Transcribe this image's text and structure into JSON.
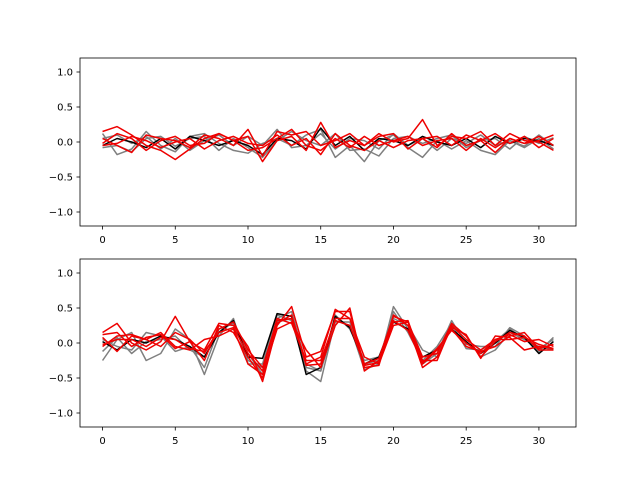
{
  "chart_data": [
    {
      "type": "line",
      "title": "",
      "xlabel": "",
      "ylabel": "",
      "xlim": [
        -1.55,
        32.55
      ],
      "ylim": [
        -1.2,
        1.2
      ],
      "x": [
        0,
        1,
        2,
        3,
        4,
        5,
        6,
        7,
        8,
        9,
        10,
        11,
        12,
        13,
        14,
        15,
        16,
        17,
        18,
        19,
        20,
        21,
        22,
        23,
        24,
        25,
        26,
        27,
        28,
        29,
        30,
        31
      ],
      "xticks": [
        0,
        5,
        10,
        15,
        20,
        25,
        30
      ],
      "xtick_labels": [
        "0",
        "5",
        "10",
        "15",
        "20",
        "25",
        "30"
      ],
      "yticks": [
        -1.0,
        -0.5,
        0.0,
        0.5,
        1.0
      ],
      "ytick_labels": [
        "−1.0",
        "−0.5",
        "0.0",
        "0.5",
        "1.0"
      ],
      "grid": false,
      "series_colors": {
        "black": "#000000",
        "gray": "#7f7f7f",
        "red": "#ee0000"
      },
      "series": [
        {
          "color": "gray",
          "values": [
            0.12,
            -0.18,
            -0.1,
            0.15,
            -0.05,
            -0.14,
            0.08,
            0.12,
            -0.02,
            -0.12,
            -0.16,
            -0.02,
            0.05,
            -0.05,
            0.1,
            0.18,
            -0.22,
            -0.05,
            -0.28,
            0.02,
            0.1,
            -0.08,
            -0.22,
            0.02,
            -0.1,
            0.02,
            -0.12,
            -0.18,
            0.02,
            -0.06,
            0.1,
            -0.05
          ]
        },
        {
          "color": "gray",
          "values": [
            -0.08,
            -0.05,
            -0.14,
            0.05,
            0.08,
            -0.06,
            0.05,
            0.08,
            -0.12,
            0.05,
            -0.08,
            -0.22,
            0.02,
            0.15,
            0.02,
            -0.05,
            0.12,
            -0.12,
            -0.1,
            -0.2,
            0.05,
            0.08,
            -0.02,
            0.05,
            0.1,
            -0.08,
            0.02,
            0.05,
            -0.1,
            0.08,
            -0.02,
            0.06
          ]
        },
        {
          "color": "gray",
          "values": [
            0.05,
            0.1,
            -0.02,
            0.08,
            -0.1,
            0.05,
            -0.12,
            0.02,
            0.1,
            -0.05,
            0.08,
            -0.05,
            0.18,
            -0.08,
            -0.05,
            0.12,
            -0.1,
            0.05,
            0.02,
            -0.1,
            0.12,
            -0.05,
            0.05,
            -0.12,
            0.05,
            -0.02,
            0.1,
            -0.05,
            0.02,
            -0.08,
            0.05,
            -0.1
          ]
        },
        {
          "color": "black",
          "values": [
            -0.05,
            0.05,
            0.0,
            -0.08,
            0.05,
            -0.1,
            0.08,
            0.02,
            -0.05,
            0.02,
            -0.05,
            -0.18,
            0.05,
            0.02,
            -0.1,
            0.2,
            -0.05,
            0.08,
            -0.12,
            0.05,
            0.02,
            -0.05,
            0.08,
            0.0,
            -0.05,
            0.05,
            -0.08,
            0.08,
            -0.02,
            0.05,
            0.02,
            -0.05
          ]
        },
        {
          "color": "red",
          "values": [
            0.15,
            0.22,
            0.1,
            -0.05,
            -0.12,
            -0.25,
            -0.1,
            0.05,
            0.12,
            0.02,
            0.08,
            -0.28,
            0.02,
            0.08,
            -0.12,
            0.28,
            -0.08,
            0.02,
            -0.05,
            0.12,
            0.0,
            0.05,
            0.32,
            -0.05,
            0.08,
            0.05,
            0.15,
            -0.05,
            0.12,
            0.02,
            0.0,
            -0.12
          ]
        },
        {
          "color": "red",
          "values": [
            0.05,
            -0.05,
            -0.15,
            0.1,
            0.05,
            0.02,
            -0.08,
            0.1,
            0.05,
            -0.05,
            0.18,
            -0.2,
            0.15,
            0.1,
            0.15,
            -0.05,
            0.02,
            0.12,
            -0.05,
            0.08,
            0.12,
            -0.1,
            0.05,
            0.08,
            -0.05,
            0.1,
            0.02,
            0.12,
            -0.02,
            0.08,
            -0.08,
            0.05
          ]
        },
        {
          "color": "red",
          "values": [
            -0.02,
            0.12,
            0.05,
            -0.12,
            0.02,
            0.08,
            -0.05,
            -0.02,
            0.12,
            0.02,
            -0.12,
            -0.08,
            0.05,
            0.18,
            -0.05,
            -0.12,
            0.05,
            -0.08,
            0.08,
            -0.05,
            0.02,
            0.08,
            -0.05,
            0.02,
            0.05,
            -0.12,
            0.05,
            -0.08,
            0.05,
            -0.02,
            0.08,
            -0.05
          ]
        },
        {
          "color": "red",
          "values": [
            -0.05,
            -0.02,
            0.08,
            0.02,
            -0.08,
            0.0,
            0.05,
            -0.1,
            0.02,
            0.08,
            -0.02,
            -0.05,
            0.1,
            -0.05,
            0.05,
            -0.18,
            0.12,
            -0.05,
            -0.12,
            0.02,
            -0.08,
            0.02,
            0.05,
            -0.08,
            0.12,
            -0.05,
            0.02,
            -0.15,
            0.05,
            -0.02,
            0.02,
            0.1
          ]
        }
      ]
    },
    {
      "type": "line",
      "title": "",
      "xlabel": "",
      "ylabel": "",
      "xlim": [
        -1.55,
        32.55
      ],
      "ylim": [
        -1.2,
        1.2
      ],
      "x": [
        0,
        1,
        2,
        3,
        4,
        5,
        6,
        7,
        8,
        9,
        10,
        11,
        12,
        13,
        14,
        15,
        16,
        17,
        18,
        19,
        20,
        21,
        22,
        23,
        24,
        25,
        26,
        27,
        28,
        29,
        30,
        31
      ],
      "xticks": [
        0,
        5,
        10,
        15,
        20,
        25,
        30
      ],
      "xtick_labels": [
        "0",
        "5",
        "10",
        "15",
        "20",
        "25",
        "30"
      ],
      "yticks": [
        -1.0,
        -0.5,
        0.0,
        0.5,
        1.0
      ],
      "ytick_labels": [
        "−1.0",
        "−0.5",
        "0.0",
        "0.5",
        "1.0"
      ],
      "grid": false,
      "series_colors": {
        "black": "#000000",
        "gray": "#7f7f7f",
        "red": "#ee0000"
      },
      "series": [
        {
          "color": "gray",
          "values": [
            -0.25,
            0.05,
            0.15,
            -0.25,
            -0.15,
            0.2,
            0.05,
            -0.45,
            0.1,
            0.35,
            -0.3,
            -0.3,
            0.4,
            0.32,
            -0.4,
            -0.55,
            0.32,
            0.25,
            -0.38,
            -0.3,
            0.52,
            0.2,
            -0.3,
            -0.15,
            0.32,
            -0.02,
            -0.05,
            -0.05,
            0.22,
            0.1,
            -0.12,
            0.08
          ]
        },
        {
          "color": "gray",
          "values": [
            0.05,
            -0.05,
            -0.1,
            0.15,
            0.1,
            -0.12,
            -0.05,
            -0.35,
            0.2,
            0.28,
            -0.15,
            -0.45,
            0.35,
            0.45,
            -0.3,
            -0.4,
            0.4,
            0.2,
            -0.25,
            -0.2,
            0.35,
            0.25,
            -0.1,
            -0.2,
            0.25,
            0.1,
            -0.2,
            -0.1,
            0.15,
            0.05,
            -0.05,
            -0.1
          ]
        },
        {
          "color": "gray",
          "values": [
            -0.12,
            0.08,
            -0.15,
            0.02,
            0.05,
            0.1,
            -0.1,
            -0.2,
            0.15,
            0.3,
            -0.25,
            -0.35,
            0.3,
            0.35,
            -0.35,
            -0.4,
            0.3,
            0.3,
            -0.3,
            -0.25,
            0.45,
            0.15,
            -0.25,
            -0.05,
            0.28,
            -0.08,
            -0.1,
            0.02,
            0.2,
            0.05,
            -0.08,
            0.05
          ]
        },
        {
          "color": "black",
          "values": [
            0.02,
            -0.1,
            0.05,
            0.0,
            0.1,
            0.05,
            -0.05,
            -0.2,
            0.15,
            0.32,
            -0.2,
            -0.22,
            0.42,
            0.38,
            -0.45,
            -0.35,
            0.38,
            0.22,
            -0.3,
            -0.2,
            0.3,
            0.2,
            -0.2,
            -0.1,
            0.2,
            0.02,
            -0.15,
            0.0,
            0.18,
            0.08,
            -0.15,
            0.02
          ]
        },
        {
          "color": "red",
          "values": [
            0.15,
            0.28,
            0.0,
            -0.1,
            0.02,
            0.38,
            0.02,
            -0.1,
            0.28,
            0.25,
            -0.05,
            -0.55,
            0.25,
            0.52,
            -0.2,
            -0.12,
            0.45,
            0.45,
            -0.35,
            -0.32,
            0.4,
            0.25,
            -0.35,
            -0.2,
            0.22,
            0.12,
            -0.22,
            0.1,
            0.08,
            -0.1,
            -0.05,
            -0.08
          ]
        },
        {
          "color": "red",
          "values": [
            0.08,
            -0.12,
            0.1,
            0.05,
            -0.05,
            0.15,
            0.05,
            -0.15,
            0.2,
            0.3,
            -0.1,
            -0.35,
            0.32,
            0.35,
            -0.3,
            -0.2,
            0.48,
            0.35,
            -0.2,
            -0.3,
            0.25,
            0.3,
            -0.25,
            -0.25,
            0.25,
            0.05,
            -0.1,
            0.05,
            0.12,
            0.02,
            0.05,
            -0.05
          ]
        },
        {
          "color": "red",
          "values": [
            -0.05,
            0.1,
            0.12,
            0.05,
            0.15,
            -0.05,
            -0.1,
            0.05,
            0.1,
            0.2,
            -0.3,
            -0.45,
            0.2,
            0.3,
            -0.1,
            -0.35,
            0.25,
            0.5,
            -0.4,
            -0.25,
            0.3,
            0.32,
            -0.3,
            -0.1,
            0.2,
            -0.05,
            -0.12,
            -0.05,
            0.1,
            0.15,
            -0.08,
            -0.02
          ]
        },
        {
          "color": "red",
          "values": [
            0.12,
            0.15,
            -0.05,
            0.08,
            0.12,
            -0.08,
            0.02,
            -0.25,
            0.25,
            0.15,
            -0.2,
            -0.5,
            0.28,
            0.4,
            -0.32,
            -0.3,
            0.35,
            0.35,
            -0.3,
            -0.22,
            0.38,
            0.3,
            -0.2,
            -0.15,
            0.28,
            0.1,
            -0.2,
            0.02,
            0.15,
            0.1,
            -0.1,
            -0.1
          ]
        },
        {
          "color": "red",
          "values": [
            -0.02,
            0.05,
            0.05,
            -0.05,
            0.08,
            0.05,
            -0.08,
            -0.12,
            0.15,
            0.22,
            -0.15,
            -0.4,
            0.35,
            0.28,
            -0.25,
            -0.25,
            0.32,
            0.25,
            -0.32,
            -0.28,
            0.32,
            0.18,
            -0.28,
            -0.08,
            0.18,
            0.0,
            -0.15,
            0.05,
            0.05,
            0.08,
            -0.02,
            -0.08
          ]
        }
      ]
    }
  ]
}
